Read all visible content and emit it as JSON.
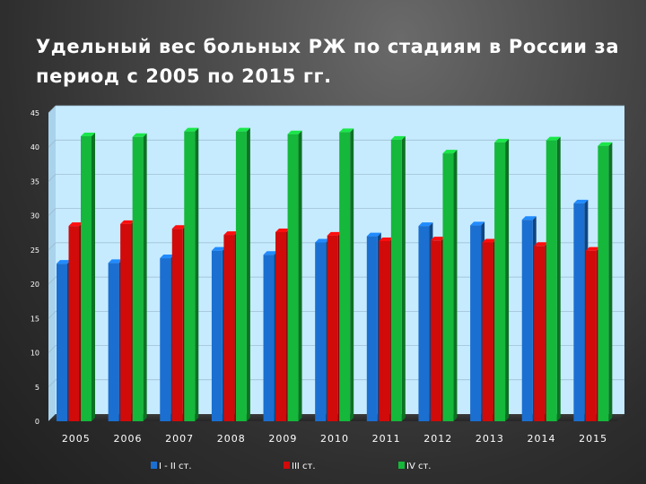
{
  "title": "Удельный вес больных  РЖ по стадиям в России за период с 2005 по 2015 гг.",
  "chart_data": {
    "type": "bar",
    "title": "",
    "xlabel": "",
    "ylabel": "",
    "ylim": [
      0,
      45
    ],
    "yticks": [
      0,
      5,
      10,
      15,
      20,
      25,
      30,
      35,
      40,
      45
    ],
    "grid": true,
    "legend_position": "bottom",
    "categories": [
      "2005",
      "2006",
      "2007",
      "2008",
      "2009",
      "2010",
      "2011",
      "2012",
      "2013",
      "2014",
      "2015"
    ],
    "series": [
      {
        "name": "I - II ст.",
        "color": "#1a6fd1",
        "values": [
          23.0,
          23.1,
          23.8,
          24.9,
          24.3,
          26.1,
          27.0,
          28.5,
          28.6,
          29.4,
          31.8
        ]
      },
      {
        "name": "III ст.",
        "color": "#d10a0a",
        "values": [
          28.5,
          28.8,
          28.1,
          27.2,
          27.6,
          27.1,
          26.3,
          26.4,
          26.1,
          25.6,
          24.9
        ]
      },
      {
        "name": "IV ст.",
        "color": "#15b83a",
        "values": [
          41.6,
          41.5,
          42.3,
          42.3,
          41.9,
          42.2,
          41.1,
          39.1,
          40.7,
          41.0,
          40.2
        ]
      }
    ]
  }
}
